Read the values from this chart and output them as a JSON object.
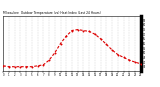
{
  "title": "Milwaukee  Outdoor Temperature (vs) Heat Index (Last 24 Hours)",
  "bg_color": "#ffffff",
  "plot_bg": "#ffffff",
  "line_color": "#dd0000",
  "grid_color": "#bbbbbb",
  "text_color": "#000000",
  "border_color": "#000000",
  "ylim": [
    30,
    90
  ],
  "ytick_vals": [
    35,
    40,
    45,
    50,
    55,
    60,
    65,
    70,
    75,
    80,
    85
  ],
  "ytick_labels": [
    "35",
    "40",
    "45",
    "50",
    "55",
    "60",
    "65",
    "70",
    "75",
    "80",
    "85"
  ],
  "xlim": [
    0,
    24
  ],
  "xtick_vals": [
    0,
    1,
    2,
    3,
    4,
    5,
    6,
    7,
    8,
    9,
    10,
    11,
    12,
    13,
    14,
    15,
    16,
    17,
    18,
    19,
    20,
    21,
    22,
    23,
    24
  ],
  "hours": [
    0,
    1,
    2,
    3,
    4,
    5,
    6,
    7,
    8,
    9,
    10,
    11,
    12,
    13,
    14,
    15,
    16,
    17,
    18,
    19,
    20,
    21,
    22,
    23,
    24
  ],
  "temps": [
    36,
    35,
    35,
    35,
    35,
    35,
    36,
    37,
    42,
    50,
    60,
    68,
    74,
    75,
    74,
    73,
    70,
    65,
    59,
    53,
    48,
    45,
    42,
    40,
    38
  ]
}
